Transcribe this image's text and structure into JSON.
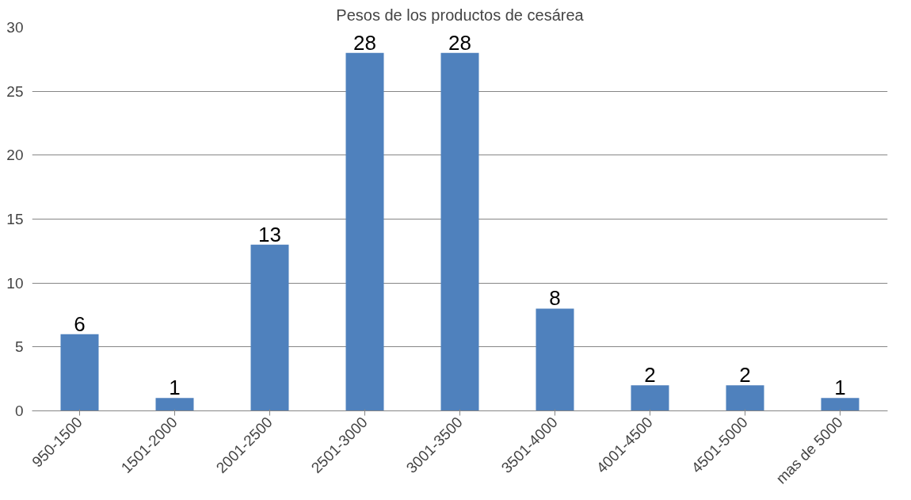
{
  "chart_data": {
    "type": "bar",
    "title": "Pesos de los productos de cesárea",
    "categories": [
      "950-1500",
      "1501-2000",
      "2001-2500",
      "2501-3000",
      "3001-3500",
      "3501-4000",
      "4001-4500",
      "4501-5000",
      "mas de 5000"
    ],
    "values": [
      6,
      1,
      13,
      28,
      28,
      8,
      2,
      2,
      1
    ],
    "color": "#4f81bd",
    "ylim": [
      0,
      30
    ],
    "yticks": [
      0,
      5,
      10,
      15,
      20,
      25,
      30
    ],
    "grid": "y",
    "data_labels": true
  }
}
